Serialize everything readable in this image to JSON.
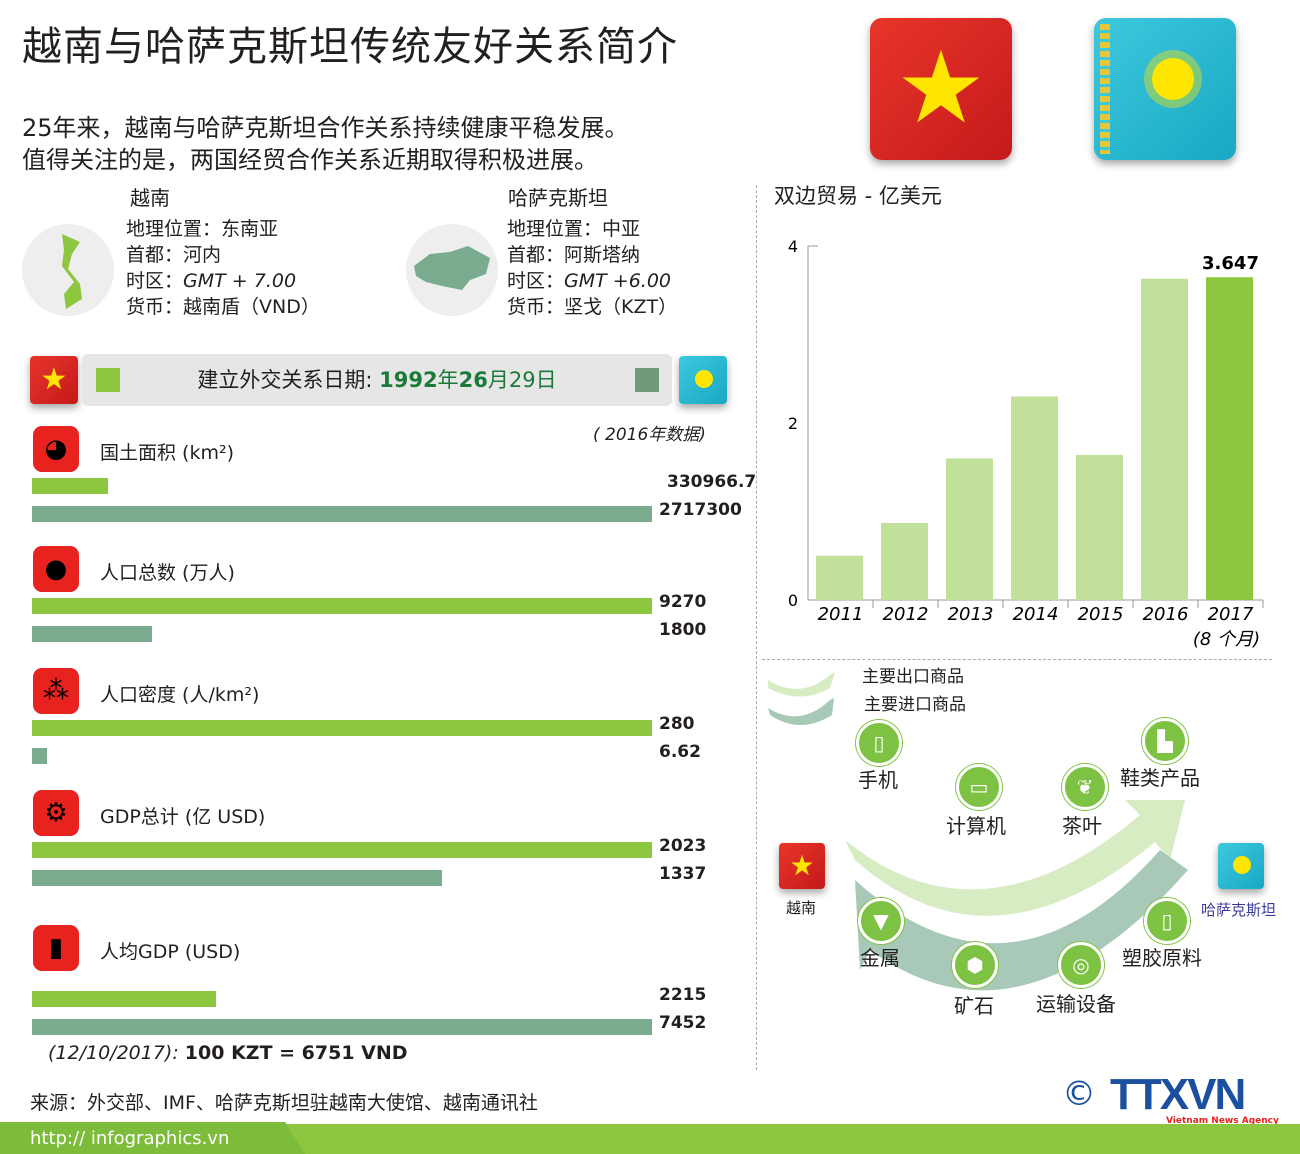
{
  "title": "越南与哈萨克斯坦传统友好关系简介",
  "intro": [
    "25年来，越南与哈萨克斯坦合作关系持续健康平稳发展。",
    "值得关注的是，两国经贸合作关系近期取得积极进展。"
  ],
  "vietnam": {
    "name": "越南",
    "location": "地理位置：东南亚",
    "capital": "首都：河内",
    "timezone_label": "时区：",
    "timezone": "GMT + 7.00",
    "currency": "货币：越南盾（VND）"
  },
  "kazakhstan": {
    "name": "哈萨克斯坦",
    "location": "地理位置：中亚",
    "capital": "首都：阿斯塔纳",
    "timezone_label": "时区：",
    "timezone": "GMT +6.00",
    "currency": "货币：坚戈（KZT）"
  },
  "diplomatic": {
    "label": "建立外交关系日期:",
    "year": "1992",
    "y": "年",
    "month": "26",
    "m": "月",
    "day": "29日"
  },
  "data_note": "( 2016年数据)",
  "colors": {
    "vietnam": "#8dc63f",
    "kazakhstan": "#7aab8e",
    "accent_red": "#e8231f"
  },
  "stats": [
    {
      "icon": "pie-chart-icon",
      "label": "国土面积 (km²)",
      "vn": 330966.7,
      "kz": 2717300,
      "vn_text": "330966.7",
      "kz_text": "2717300"
    },
    {
      "icon": "person-icon",
      "label": "人口总数 (万人)",
      "vn": 9270,
      "kz": 1800,
      "vn_text": "9270",
      "kz_text": "1800"
    },
    {
      "icon": "people-icon",
      "label": "人口密度 (人/km²)",
      "vn": 280,
      "kz": 6.62,
      "vn_text": "280",
      "kz_text": "6.62"
    },
    {
      "icon": "gears-icon",
      "label": "GDP总计 (亿 USD)",
      "vn": 2023,
      "kz": 1337,
      "vn_text": "2023",
      "kz_text": "1337"
    },
    {
      "icon": "gdp-person-icon",
      "label": "人均GDP (USD)",
      "vn": 2215,
      "kz": 7452,
      "vn_text": "2215",
      "kz_text": "7452"
    }
  ],
  "exchange": {
    "date": "(12/10/2017):",
    "rate": "100 KZT = 6751 VND"
  },
  "source": "来源：外交部、IMF、哈萨克斯坦驻越南大使馆、越南通讯社",
  "url": "http:// infographics.vn",
  "logo": {
    "text": "TTXVN",
    "sub": "Vietnam News Agency",
    "copyright": "©"
  },
  "chart_data": {
    "type": "bar",
    "title": "双边贸易 - 亿美元",
    "categories": [
      "2011",
      "2012",
      "2013",
      "2014",
      "2015",
      "2016",
      "2017"
    ],
    "category_note": "(8 个月)",
    "values": [
      0.5,
      0.87,
      1.6,
      2.3,
      1.64,
      3.63,
      3.647
    ],
    "data_labels": {
      "2017": "3.647"
    },
    "yticks": [
      "0",
      "2",
      "4"
    ],
    "ylim": [
      0,
      4
    ],
    "grid": false,
    "colors": {
      "default": "#c1e09a",
      "highlight": "#8dc63f"
    }
  },
  "trade": {
    "legend_export": "主要出口商品",
    "legend_import": "主要进口商品",
    "vietnam": "越南",
    "kazakhstan": "哈萨克斯坦",
    "exports": [
      {
        "label": "手机",
        "icon": "phone-icon"
      },
      {
        "label": "计算机",
        "icon": "computer-icon"
      },
      {
        "label": "茶叶",
        "icon": "tea-leaf-icon"
      },
      {
        "label": "鞋类产品",
        "icon": "shoe-icon"
      }
    ],
    "imports": [
      {
        "label": "金属",
        "icon": "anvil-icon"
      },
      {
        "label": "矿石",
        "icon": "ore-icon"
      },
      {
        "label": "运输设备",
        "icon": "tire-icon"
      },
      {
        "label": "塑胶原料",
        "icon": "plastic-cup-icon"
      }
    ]
  }
}
